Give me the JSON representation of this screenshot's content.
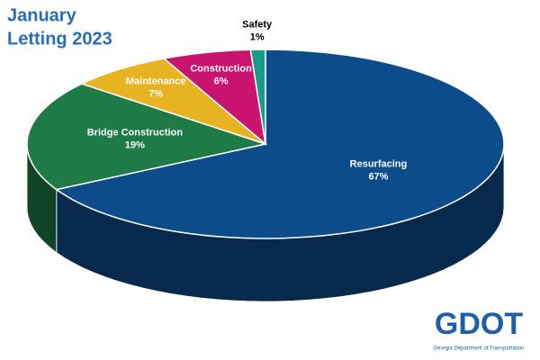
{
  "chart_data": {
    "type": "pie",
    "title": [
      "January",
      "Letting 2023"
    ],
    "categories": [
      "Resurfacing",
      "Bridge Construction",
      "Maintenance",
      "Construction",
      "Safety"
    ],
    "values": [
      67,
      19,
      7,
      6,
      1
    ],
    "value_labels": [
      "67%",
      "19%",
      "7%",
      "6%",
      "1%"
    ],
    "colors": [
      "#0d4c8b",
      "#1e7a46",
      "#e8b321",
      "#c8136f",
      "#1a9a8a"
    ]
  },
  "logo": {
    "text": "GDOT",
    "subtitle": "Georgia Department of Transportation"
  }
}
